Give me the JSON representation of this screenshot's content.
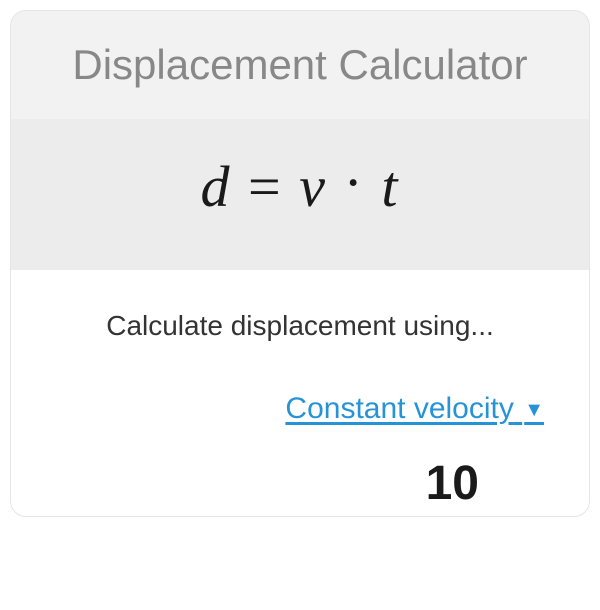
{
  "card": {
    "title": "Displacement Calculator",
    "formula": {
      "var_result": "d",
      "var_velocity": "v",
      "var_time": "t"
    },
    "subtitle": "Calculate displacement using...",
    "selector": {
      "label": "Constant velocity"
    },
    "peek": {
      "value_fragment": "10"
    },
    "colors": {
      "title_text": "#888888",
      "formula_text": "#1a1a1a",
      "link_color": "#2693d6",
      "card_bg": "#f2f2f2",
      "formula_bg": "#ececec",
      "content_bg": "#ffffff"
    }
  }
}
